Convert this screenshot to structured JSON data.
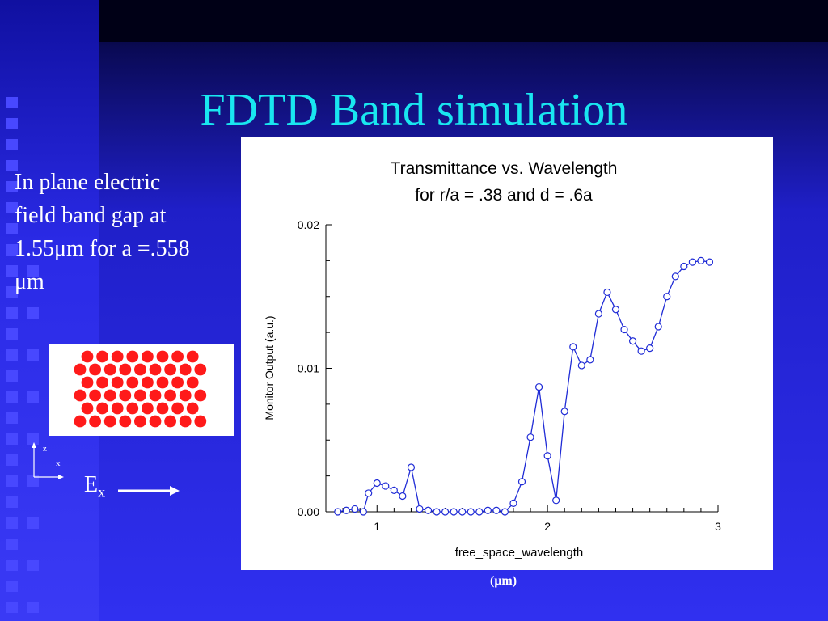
{
  "slide": {
    "title": "FDTD Band simulation",
    "description_lines": [
      "In plane electric",
      "field band gap at",
      "1.55μm for a =.558",
      "μm"
    ],
    "axis_z": "z",
    "axis_x": "x",
    "field_label_main": "E",
    "field_label_sub": "x",
    "units_note": "(μm)",
    "colors": {
      "title": "#19e6f0",
      "background": "#2a2ae6",
      "lattice_dot": "#ff1a1a",
      "series": "#1f2bd6"
    }
  },
  "chart_data": {
    "type": "line",
    "title_lines": [
      "Transmittance vs. Wavelength",
      "for r/a = .38 and d = .6a"
    ],
    "xlabel": "free_space_wavelength",
    "ylabel": "Monitor Output (a.u.)",
    "xlim": [
      0.7,
      3.0
    ],
    "ylim": [
      0.0,
      0.02
    ],
    "xticks": [
      {
        "value": 1,
        "label": "1"
      },
      {
        "value": 2,
        "label": "2"
      },
      {
        "value": 3,
        "label": "3"
      }
    ],
    "yticks": [
      {
        "value": 0.0,
        "label": "0.00"
      },
      {
        "value": 0.01,
        "label": "0.01"
      },
      {
        "value": 0.02,
        "label": "0.02"
      }
    ],
    "grid": false,
    "series": [
      {
        "marker": "circle",
        "x": [
          0.77,
          0.82,
          0.87,
          0.92,
          0.95,
          1.0,
          1.05,
          1.1,
          1.15,
          1.2,
          1.25,
          1.3,
          1.35,
          1.4,
          1.45,
          1.5,
          1.55,
          1.6,
          1.65,
          1.7,
          1.75,
          1.8,
          1.85,
          1.9,
          1.95,
          2.0,
          2.05,
          2.1,
          2.15,
          2.2,
          2.25,
          2.3,
          2.35,
          2.4,
          2.45,
          2.5,
          2.55,
          2.6,
          2.65,
          2.7,
          2.75,
          2.8,
          2.85,
          2.9,
          2.95
        ],
        "y": [
          0.0,
          0.0001,
          0.0002,
          0.0,
          0.0013,
          0.002,
          0.0018,
          0.0015,
          0.0011,
          0.0031,
          0.0002,
          0.0001,
          0.0,
          0.0,
          0.0,
          0.0,
          0.0,
          0.0,
          0.0001,
          0.0001,
          0.0,
          0.0006,
          0.0021,
          0.0052,
          0.0087,
          0.0039,
          0.0008,
          0.007,
          0.0115,
          0.0102,
          0.0106,
          0.0138,
          0.0153,
          0.0141,
          0.0127,
          0.0119,
          0.0112,
          0.0114,
          0.0129,
          0.015,
          0.0164,
          0.0171,
          0.0174,
          0.0175,
          0.0174
        ]
      }
    ]
  }
}
